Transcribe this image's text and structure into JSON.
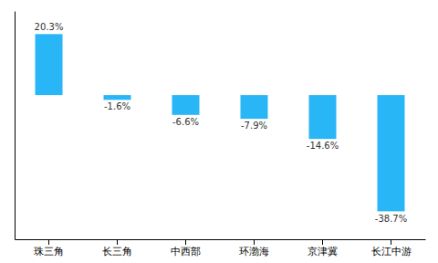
{
  "chart_data": {
    "type": "bar",
    "categories": [
      "珠三角",
      "长三角",
      "中西部",
      "环渤海",
      "京津冀",
      "长江中游"
    ],
    "values": [
      20.3,
      -1.6,
      -6.6,
      -7.9,
      -14.6,
      -38.7
    ],
    "value_labels": [
      "20.3%",
      "-1.6%",
      "-6.6%",
      "-7.9%",
      "-14.6%",
      "-38.7%"
    ],
    "color": "#29b6f6",
    "ylim": [
      -48,
      28
    ],
    "data_labels": true,
    "tick_labels": "x"
  }
}
